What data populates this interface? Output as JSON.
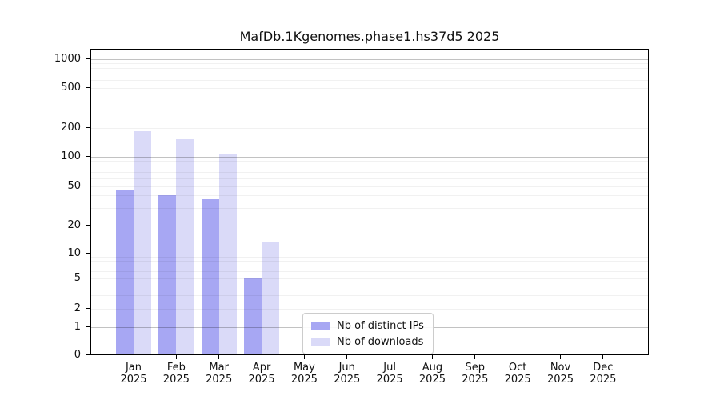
{
  "chart_data": {
    "type": "bar",
    "title": "MafDb.1Kgenomes.phase1.hs37d5 2025",
    "categories": [
      "Jan 2025",
      "Feb 2025",
      "Mar 2025",
      "Apr 2025",
      "May 2025",
      "Jun 2025",
      "Jul 2025",
      "Aug 2025",
      "Sep 2025",
      "Oct 2025",
      "Nov 2025",
      "Dec 2025"
    ],
    "series": [
      {
        "name": "Nb of distinct IPs",
        "color": "#a7a7f3",
        "values": [
          45,
          40,
          37,
          5,
          0,
          0,
          0,
          0,
          0,
          0,
          0,
          0
        ]
      },
      {
        "name": "Nb of downloads",
        "color": "#dadaf8",
        "values": [
          185,
          152,
          107,
          13,
          0,
          0,
          0,
          0,
          0,
          0,
          0,
          0
        ]
      }
    ],
    "xlabel": "",
    "ylabel": "",
    "y_axis": {
      "scale": "symlog",
      "ticks": [
        0,
        1,
        2,
        5,
        10,
        20,
        50,
        100,
        200,
        500,
        1000
      ],
      "range": [
        0,
        1000
      ]
    },
    "grid": {
      "horizontal": true,
      "minor_log_lines": true,
      "vertical": false
    },
    "legend": {
      "position": "inside-lower-middle",
      "entries": [
        "Nb of distinct IPs",
        "Nb of downloads"
      ]
    }
  }
}
